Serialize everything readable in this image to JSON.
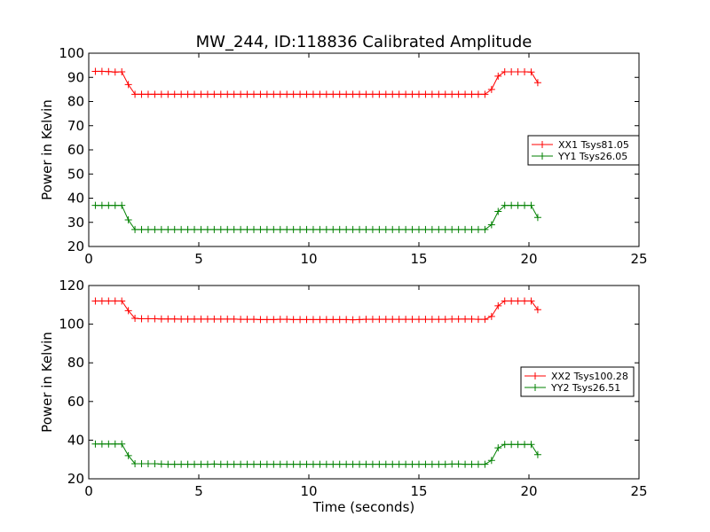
{
  "figure": {
    "title": "MW_244, ID:118836 Calibrated Amplitude"
  },
  "chart_data": [
    {
      "type": "line",
      "title": "MW_244, ID:118836 Calibrated Amplitude",
      "xlabel": "",
      "ylabel": "Power in Kelvin",
      "xlim": [
        0,
        25
      ],
      "ylim": [
        20,
        100
      ],
      "xticks": [
        0,
        5,
        10,
        15,
        20,
        25
      ],
      "yticks": [
        20,
        30,
        40,
        50,
        60,
        70,
        80,
        90,
        100
      ],
      "grid": false,
      "legend_position": "right",
      "x": [
        0.3,
        0.6,
        0.9,
        1.2,
        1.5,
        1.8,
        2.1,
        2.4,
        2.7,
        3.0,
        3.3,
        3.6,
        3.9,
        4.2,
        4.5,
        4.8,
        5.1,
        5.4,
        5.7,
        6.0,
        6.3,
        6.6,
        6.9,
        7.2,
        7.5,
        7.8,
        8.1,
        8.4,
        8.7,
        9.0,
        9.3,
        9.6,
        9.9,
        10.2,
        10.5,
        10.8,
        11.1,
        11.4,
        11.7,
        12.0,
        12.3,
        12.6,
        12.9,
        13.2,
        13.5,
        13.8,
        14.1,
        14.4,
        14.7,
        15.0,
        15.3,
        15.6,
        15.9,
        16.2,
        16.5,
        16.8,
        17.1,
        17.4,
        17.7,
        18.0,
        18.3,
        18.6,
        18.9,
        19.2,
        19.5,
        19.8,
        20.1,
        20.4
      ],
      "series": [
        {
          "name": "XX1 Tsys81.05",
          "color": "#ff0000",
          "values": [
            92.5,
            92.5,
            92.4,
            92.2,
            92.3,
            87.0,
            83.0,
            83.0,
            83.0,
            83.0,
            83.0,
            83.0,
            83.0,
            83.0,
            83.0,
            83.0,
            83.0,
            83.0,
            83.0,
            83.0,
            83.0,
            83.0,
            83.0,
            83.0,
            83.0,
            83.0,
            83.0,
            83.0,
            83.0,
            83.0,
            83.0,
            83.0,
            83.0,
            83.0,
            83.0,
            83.0,
            83.0,
            83.0,
            83.0,
            83.0,
            83.0,
            83.0,
            83.0,
            83.0,
            83.0,
            83.0,
            83.0,
            83.0,
            83.0,
            83.0,
            83.0,
            83.0,
            83.0,
            83.0,
            83.0,
            83.0,
            83.0,
            83.0,
            83.0,
            83.0,
            85.0,
            90.5,
            92.3,
            92.3,
            92.3,
            92.3,
            92.2,
            87.8
          ]
        },
        {
          "name": "YY1 Tsys26.05",
          "color": "#008000",
          "values": [
            37.0,
            37.0,
            37.0,
            37.0,
            37.0,
            31.0,
            27.0,
            27.0,
            27.0,
            27.0,
            27.0,
            27.0,
            27.0,
            27.0,
            27.0,
            27.0,
            27.0,
            27.0,
            27.0,
            27.0,
            27.0,
            27.0,
            27.0,
            27.0,
            27.0,
            27.0,
            27.0,
            27.0,
            27.0,
            27.0,
            27.0,
            27.0,
            27.0,
            27.0,
            27.0,
            27.0,
            27.0,
            27.0,
            27.0,
            27.0,
            27.0,
            27.0,
            27.0,
            27.0,
            27.0,
            27.0,
            27.0,
            27.0,
            27.0,
            27.0,
            27.0,
            27.0,
            27.0,
            27.0,
            27.0,
            27.0,
            27.0,
            27.0,
            27.0,
            27.0,
            29.0,
            34.5,
            37.0,
            37.0,
            37.0,
            37.0,
            37.0,
            32.0
          ]
        }
      ]
    },
    {
      "type": "line",
      "title": "",
      "xlabel": "Time (seconds)",
      "ylabel": "Power in Kelvin",
      "xlim": [
        0,
        25
      ],
      "ylim": [
        20,
        120
      ],
      "xticks": [
        0,
        5,
        10,
        15,
        20,
        25
      ],
      "yticks": [
        20,
        40,
        60,
        80,
        100,
        120
      ],
      "grid": false,
      "legend_position": "right",
      "x": [
        0.3,
        0.6,
        0.9,
        1.2,
        1.5,
        1.8,
        2.1,
        2.4,
        2.7,
        3.0,
        3.3,
        3.6,
        3.9,
        4.2,
        4.5,
        4.8,
        5.1,
        5.4,
        5.7,
        6.0,
        6.3,
        6.6,
        6.9,
        7.2,
        7.5,
        7.8,
        8.1,
        8.4,
        8.7,
        9.0,
        9.3,
        9.6,
        9.9,
        10.2,
        10.5,
        10.8,
        11.1,
        11.4,
        11.7,
        12.0,
        12.3,
        12.6,
        12.9,
        13.2,
        13.5,
        13.8,
        14.1,
        14.4,
        14.7,
        15.0,
        15.3,
        15.6,
        15.9,
        16.2,
        16.5,
        16.8,
        17.1,
        17.4,
        17.7,
        18.0,
        18.3,
        18.6,
        18.9,
        19.2,
        19.5,
        19.8,
        20.1,
        20.4
      ],
      "series": [
        {
          "name": "XX2 Tsys100.28",
          "color": "#ff0000",
          "values": [
            112.0,
            112.0,
            112.0,
            112.0,
            112.0,
            107.0,
            103.0,
            102.8,
            102.8,
            102.8,
            102.7,
            102.7,
            102.7,
            102.6,
            102.6,
            102.6,
            102.6,
            102.6,
            102.6,
            102.6,
            102.6,
            102.6,
            102.5,
            102.5,
            102.5,
            102.4,
            102.4,
            102.4,
            102.5,
            102.5,
            102.4,
            102.4,
            102.4,
            102.4,
            102.4,
            102.4,
            102.4,
            102.4,
            102.4,
            102.3,
            102.4,
            102.5,
            102.5,
            102.5,
            102.5,
            102.5,
            102.5,
            102.5,
            102.5,
            102.5,
            102.5,
            102.5,
            102.5,
            102.5,
            102.6,
            102.6,
            102.6,
            102.6,
            102.5,
            102.5,
            104.0,
            109.5,
            112.0,
            112.0,
            112.0,
            112.0,
            112.0,
            107.5
          ]
        },
        {
          "name": "YY2 Tsys26.51",
          "color": "#008000",
          "values": [
            38.0,
            38.0,
            38.0,
            38.0,
            38.0,
            32.0,
            27.8,
            27.8,
            27.8,
            27.8,
            27.6,
            27.5,
            27.5,
            27.5,
            27.5,
            27.5,
            27.5,
            27.5,
            27.6,
            27.5,
            27.5,
            27.5,
            27.5,
            27.5,
            27.5,
            27.5,
            27.5,
            27.5,
            27.5,
            27.5,
            27.5,
            27.5,
            27.5,
            27.5,
            27.5,
            27.5,
            27.5,
            27.5,
            27.5,
            27.5,
            27.5,
            27.5,
            27.5,
            27.5,
            27.5,
            27.5,
            27.5,
            27.5,
            27.5,
            27.5,
            27.5,
            27.5,
            27.5,
            27.5,
            27.6,
            27.6,
            27.5,
            27.5,
            27.5,
            27.5,
            29.5,
            36.0,
            37.8,
            37.8,
            37.8,
            37.8,
            37.8,
            32.5
          ]
        }
      ]
    }
  ]
}
